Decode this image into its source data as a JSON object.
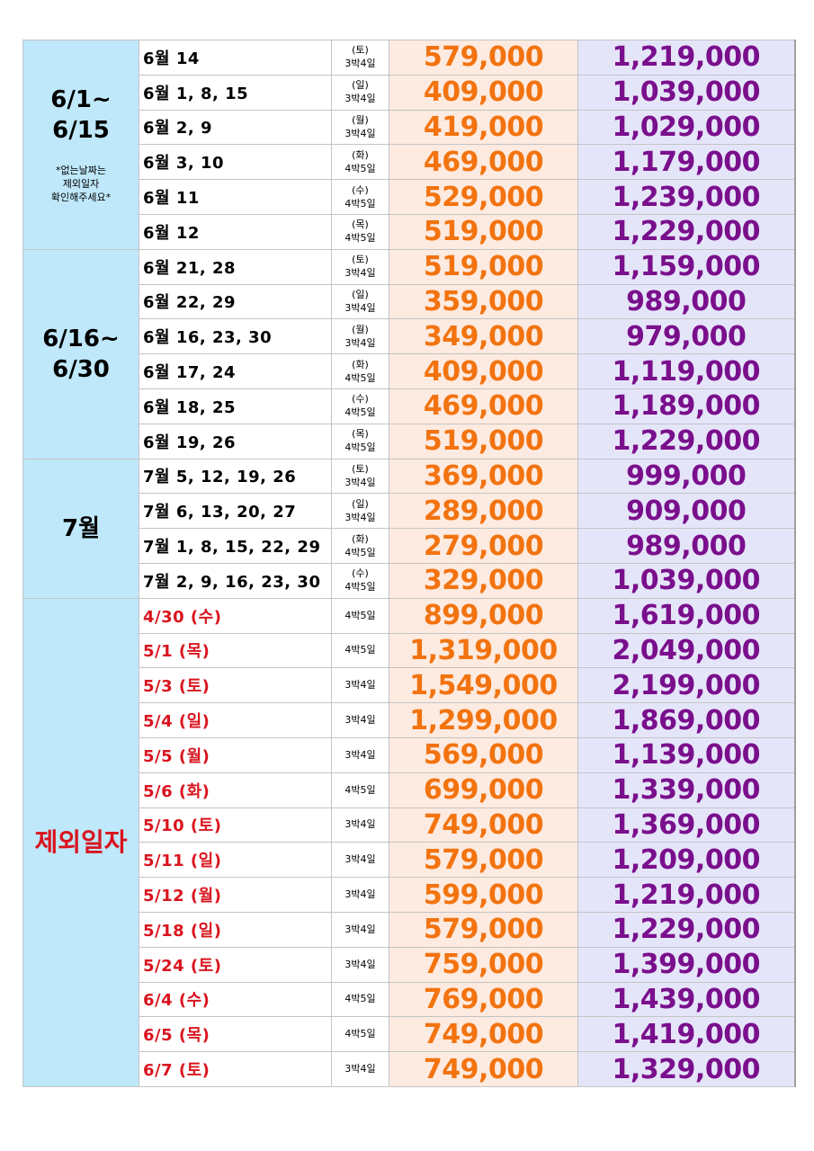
{
  "groups": [
    {
      "title": [
        "6/1~",
        "6/15"
      ],
      "note": [
        "*없는날짜는",
        "제외일자",
        "확인해주세요*"
      ],
      "title_color": "black",
      "rows": [
        {
          "date": "6월  14",
          "dow": "(토)",
          "nights": "3박4일",
          "price1": "579,000",
          "price2": "1,219,000"
        },
        {
          "date": "6월  1, 8, 15",
          "dow": "(일)",
          "nights": "3박4일",
          "price1": "409,000",
          "price2": "1,039,000"
        },
        {
          "date": "6월  2, 9",
          "dow": "(월)",
          "nights": "3박4일",
          "price1": "419,000",
          "price2": "1,029,000"
        },
        {
          "date": "6월  3, 10",
          "dow": "(화)",
          "nights": "4박5일",
          "price1": "469,000",
          "price2": "1,179,000"
        },
        {
          "date": "6월  11",
          "dow": "(수)",
          "nights": "4박5일",
          "price1": "529,000",
          "price2": "1,239,000"
        },
        {
          "date": "6월  12",
          "dow": "(목)",
          "nights": "4박5일",
          "price1": "519,000",
          "price2": "1,229,000"
        }
      ]
    },
    {
      "title": [
        "6/16~",
        "6/30"
      ],
      "note": [],
      "title_color": "black",
      "rows": [
        {
          "date": "6월  21, 28",
          "dow": "(토)",
          "nights": "3박4일",
          "price1": "519,000",
          "price2": "1,159,000"
        },
        {
          "date": "6월  22, 29",
          "dow": "(일)",
          "nights": "3박4일",
          "price1": "359,000",
          "price2": "989,000"
        },
        {
          "date": "6월  16, 23, 30",
          "dow": "(월)",
          "nights": "3박4일",
          "price1": "349,000",
          "price2": "979,000"
        },
        {
          "date": "6월  17, 24",
          "dow": "(화)",
          "nights": "4박5일",
          "price1": "409,000",
          "price2": "1,119,000"
        },
        {
          "date": "6월  18, 25",
          "dow": "(수)",
          "nights": "4박5일",
          "price1": "469,000",
          "price2": "1,189,000"
        },
        {
          "date": "6월  19, 26",
          "dow": "(목)",
          "nights": "4박5일",
          "price1": "519,000",
          "price2": "1,229,000"
        }
      ]
    },
    {
      "title": [
        "7월"
      ],
      "note": [],
      "title_color": "black",
      "rows": [
        {
          "date": "7월  5, 12, 19, 26",
          "dow": "(토)",
          "nights": "3박4일",
          "price1": "369,000",
          "price2": "999,000"
        },
        {
          "date": "7월  6, 13, 20, 27",
          "dow": "(일)",
          "nights": "3박4일",
          "price1": "289,000",
          "price2": "909,000"
        },
        {
          "date": "7월  1, 8, 15, 22, 29",
          "dow": "(화)",
          "nights": "4박5일",
          "price1": "279,000",
          "price2": "989,000"
        },
        {
          "date": "7월  2, 9, 16, 23, 30",
          "dow": "(수)",
          "nights": "4박5일",
          "price1": "329,000",
          "price2": "1,039,000"
        }
      ]
    },
    {
      "title": [
        "제외일자"
      ],
      "note": [],
      "title_color": "red",
      "rows": [
        {
          "date": "4/30 (수)",
          "dow": "",
          "nights": "4박5일",
          "price1": "899,000",
          "price2": "1,619,000"
        },
        {
          "date": "5/1 (목)",
          "dow": "",
          "nights": "4박5일",
          "price1": "1,319,000",
          "price2": "2,049,000"
        },
        {
          "date": "5/3 (토)",
          "dow": "",
          "nights": "3박4일",
          "price1": "1,549,000",
          "price2": "2,199,000"
        },
        {
          "date": "5/4 (일)",
          "dow": "",
          "nights": "3박4일",
          "price1": "1,299,000",
          "price2": "1,869,000"
        },
        {
          "date": "5/5 (월)",
          "dow": "",
          "nights": "3박4일",
          "price1": "569,000",
          "price2": "1,139,000"
        },
        {
          "date": "5/6 (화)",
          "dow": "",
          "nights": "4박5일",
          "price1": "699,000",
          "price2": "1,339,000"
        },
        {
          "date": "5/10 (토)",
          "dow": "",
          "nights": "3박4일",
          "price1": "749,000",
          "price2": "1,369,000"
        },
        {
          "date": "5/11 (일)",
          "dow": "",
          "nights": "3박4일",
          "price1": "579,000",
          "price2": "1,209,000"
        },
        {
          "date": "5/12 (월)",
          "dow": "",
          "nights": "3박4일",
          "price1": "599,000",
          "price2": "1,219,000"
        },
        {
          "date": "5/18 (일)",
          "dow": "",
          "nights": "3박4일",
          "price1": "579,000",
          "price2": "1,229,000"
        },
        {
          "date": "5/24 (토)",
          "dow": "",
          "nights": "3박4일",
          "price1": "759,000",
          "price2": "1,399,000"
        },
        {
          "date": "6/4 (수)",
          "dow": "",
          "nights": "4박5일",
          "price1": "769,000",
          "price2": "1,439,000"
        },
        {
          "date": "6/5 (목)",
          "dow": "",
          "nights": "4박5일",
          "price1": "749,000",
          "price2": "1,419,000"
        },
        {
          "date": "6/7 (토)",
          "dow": "",
          "nights": "3박4일",
          "price1": "749,000",
          "price2": "1,329,000"
        }
      ]
    }
  ],
  "colors": {
    "group_bg": "#bfe8fa",
    "price1_bg": "#fdeae0",
    "price1_text": "#f2730f",
    "price2_bg": "#e5e5fa",
    "price2_text": "#7a0f8c",
    "excluded_text": "#d9141e"
  }
}
